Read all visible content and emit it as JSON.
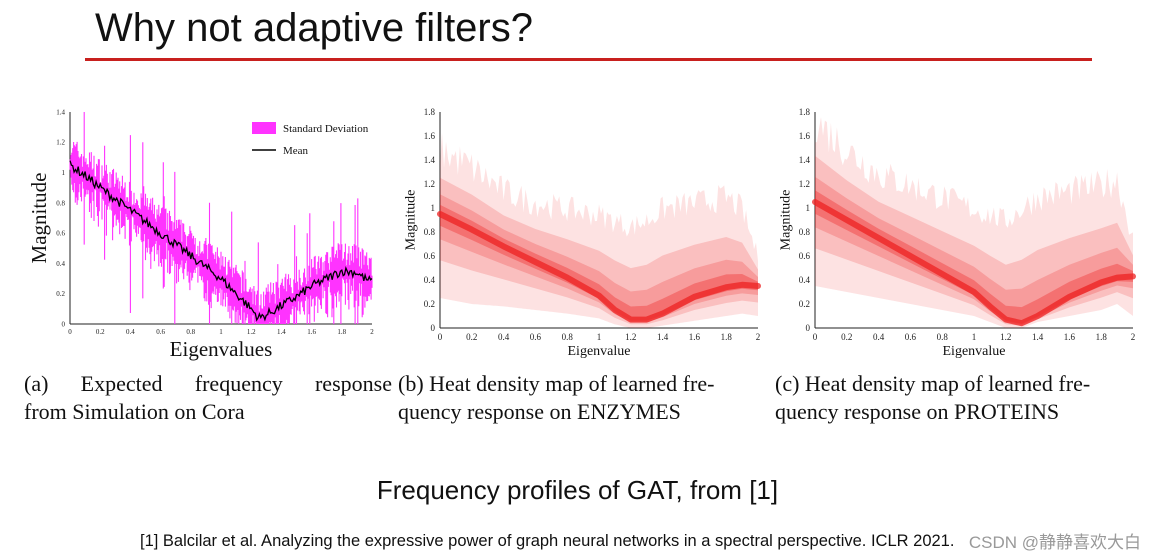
{
  "slide": {
    "title": "Why not adaptive filters?",
    "subtitle": "Frequency profiles of GAT, from [1]",
    "footnote": "[1] Balcilar et al. Analyzing the expressive power of graph neural networks in a spectral perspective. ICLR 2021.",
    "watermark": "CSDN @静静喜欢大白",
    "accent_color": "#c8201e"
  },
  "chart_data": [
    {
      "type": "line",
      "id": "a",
      "caption_line1_words": [
        "(a)",
        "Expected",
        "frequency",
        "response"
      ],
      "caption_line2": "from Simulation on Cora",
      "xlabel": "Eigenvalues",
      "ylabel": "Magnitude",
      "xlim": [
        0,
        2
      ],
      "ylim": [
        0,
        1.4
      ],
      "xticks": [
        "0",
        "0.2",
        "0.4",
        "0.6",
        "0.8",
        "1",
        "1.2",
        "1.4",
        "1.6",
        "1.8",
        "2"
      ],
      "yticks": [
        "0",
        "0.2",
        "0.4",
        "0.6",
        "0.8",
        "1",
        "1.2",
        "1.4"
      ],
      "legend": {
        "position": "top-right",
        "entries": [
          "Standard Deviation",
          "Mean"
        ]
      },
      "series": [
        {
          "name": "Mean",
          "color": "#000000",
          "x": [
            0,
            0.1,
            0.2,
            0.4,
            0.6,
            0.8,
            1.0,
            1.1,
            1.2,
            1.25,
            1.3,
            1.4,
            1.5,
            1.6,
            1.7,
            1.8,
            1.9,
            1.95,
            2.0
          ],
          "y": [
            1.05,
            0.98,
            0.9,
            0.75,
            0.6,
            0.45,
            0.3,
            0.2,
            0.1,
            0.04,
            0.06,
            0.12,
            0.18,
            0.25,
            0.3,
            0.35,
            0.34,
            0.3,
            0.28
          ]
        },
        {
          "name": "Standard Deviation",
          "color": "#ff33ff",
          "spread": 0.09
        }
      ]
    },
    {
      "type": "heatmap",
      "id": "b",
      "caption_line1": "(b) Heat density map of learned fre-",
      "caption_line2": "quency response on ENZYMES",
      "xlabel": "Eigenvalue",
      "ylabel": "Magnitude",
      "xlim": [
        0,
        2
      ],
      "ylim": [
        0,
        1.8
      ],
      "xticks": [
        "0",
        "0.2",
        "0.4",
        "0.6",
        "0.8",
        "1",
        "1.2",
        "1.4",
        "1.6",
        "1.8",
        "2"
      ],
      "yticks": [
        "0",
        "0.2",
        "0.4",
        "0.6",
        "0.8",
        "1",
        "1.2",
        "1.4",
        "1.6",
        "1.8"
      ],
      "color": "#ee2222",
      "x": [
        0,
        0.2,
        0.4,
        0.6,
        0.8,
        1.0,
        1.1,
        1.2,
        1.3,
        1.4,
        1.6,
        1.8,
        1.9,
        2.0
      ],
      "mean": [
        0.95,
        0.82,
        0.68,
        0.55,
        0.42,
        0.27,
        0.15,
        0.07,
        0.07,
        0.12,
        0.26,
        0.34,
        0.36,
        0.35
      ],
      "upper": [
        1.5,
        1.35,
        1.15,
        1.05,
        1.0,
        0.95,
        0.9,
        0.85,
        0.9,
        1.0,
        1.05,
        1.1,
        1.0,
        0.6
      ],
      "lower": [
        0.25,
        0.2,
        0.18,
        0.15,
        0.12,
        0.08,
        0.03,
        0.0,
        0.0,
        0.02,
        0.06,
        0.1,
        0.12,
        0.1
      ]
    },
    {
      "type": "heatmap",
      "id": "c",
      "caption_line1": "(c) Heat density map of learned fre-",
      "caption_line2": "quency response on PROTEINS",
      "xlabel": "Eigenvalue",
      "ylabel": "Magnitude",
      "xlim": [
        0,
        2
      ],
      "ylim": [
        0,
        1.8
      ],
      "xticks": [
        "0",
        "0.2",
        "0.4",
        "0.6",
        "0.8",
        "1",
        "1.2",
        "1.4",
        "1.6",
        "1.8",
        "2"
      ],
      "yticks": [
        "0",
        "0.2",
        "0.4",
        "0.6",
        "0.8",
        "1",
        "1.2",
        "1.4",
        "1.6",
        "1.8"
      ],
      "color": "#ee2222",
      "x": [
        0,
        0.2,
        0.4,
        0.6,
        0.8,
        1.0,
        1.1,
        1.2,
        1.3,
        1.4,
        1.6,
        1.8,
        1.9,
        2.0
      ],
      "mean": [
        1.05,
        0.9,
        0.75,
        0.6,
        0.45,
        0.3,
        0.18,
        0.07,
        0.04,
        0.1,
        0.26,
        0.38,
        0.42,
        0.43
      ],
      "upper": [
        1.75,
        1.5,
        1.3,
        1.2,
        1.1,
        1.0,
        0.95,
        0.9,
        1.0,
        1.1,
        1.15,
        1.2,
        1.25,
        0.75
      ],
      "lower": [
        0.35,
        0.3,
        0.25,
        0.2,
        0.15,
        0.1,
        0.05,
        0.0,
        0.0,
        0.05,
        0.1,
        0.15,
        0.2,
        0.1
      ]
    }
  ]
}
